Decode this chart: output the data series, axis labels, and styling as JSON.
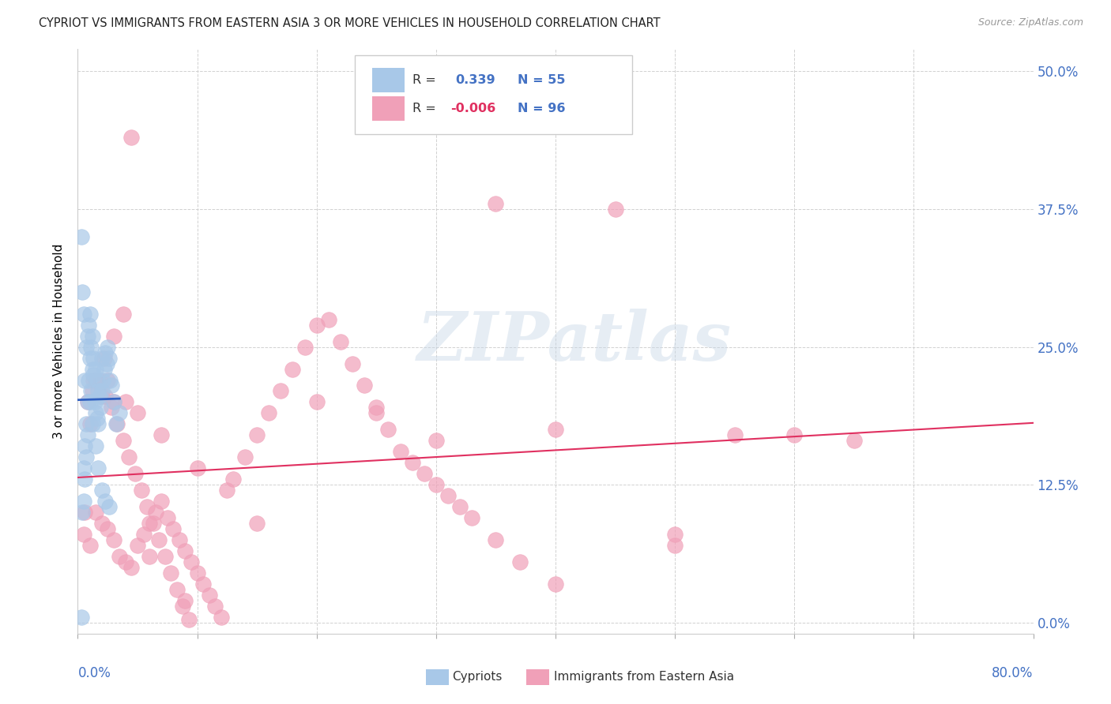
{
  "title": "CYPRIOT VS IMMIGRANTS FROM EASTERN ASIA 3 OR MORE VEHICLES IN HOUSEHOLD CORRELATION CHART",
  "source": "Source: ZipAtlas.com",
  "ylabel": "3 or more Vehicles in Household",
  "xlim": [
    0.0,
    80.0
  ],
  "ylim": [
    -1.0,
    52.0
  ],
  "blue_color": "#a8c8e8",
  "pink_color": "#f0a0b8",
  "trend_blue_color": "#3060c0",
  "trend_pink_color": "#e03060",
  "legend_r_blue": "0.339",
  "legend_n_blue": "55",
  "legend_r_pink": "-0.006",
  "legend_n_pink": "96",
  "blue_x": [
    0.3,
    0.4,
    0.5,
    0.5,
    0.6,
    0.6,
    0.7,
    0.7,
    0.8,
    0.8,
    0.9,
    0.9,
    1.0,
    1.0,
    1.1,
    1.1,
    1.2,
    1.2,
    1.3,
    1.3,
    1.4,
    1.5,
    1.5,
    1.6,
    1.6,
    1.7,
    1.7,
    1.8,
    1.9,
    2.0,
    2.0,
    2.1,
    2.2,
    2.3,
    2.4,
    2.5,
    2.6,
    2.7,
    2.8,
    3.0,
    3.2,
    3.5,
    0.4,
    0.5,
    0.6,
    0.7,
    0.8,
    1.0,
    1.2,
    1.5,
    1.7,
    2.0,
    2.3,
    2.6,
    0.3
  ],
  "blue_y": [
    35.0,
    30.0,
    14.0,
    28.0,
    16.0,
    22.0,
    18.0,
    25.0,
    20.0,
    26.0,
    22.0,
    27.0,
    24.0,
    28.0,
    21.0,
    25.0,
    23.0,
    26.0,
    22.5,
    24.0,
    20.0,
    19.0,
    23.0,
    18.5,
    22.0,
    18.0,
    21.0,
    20.5,
    19.5,
    21.0,
    24.0,
    22.0,
    23.0,
    24.5,
    23.5,
    25.0,
    24.0,
    22.0,
    21.5,
    20.0,
    18.0,
    19.0,
    10.0,
    11.0,
    13.0,
    15.0,
    17.0,
    20.0,
    18.0,
    16.0,
    14.0,
    12.0,
    11.0,
    10.5,
    0.5
  ],
  "pink_x": [
    0.5,
    1.0,
    1.5,
    2.0,
    2.5,
    3.0,
    3.5,
    4.0,
    4.5,
    5.0,
    5.5,
    6.0,
    6.5,
    7.0,
    7.5,
    8.0,
    8.5,
    9.0,
    9.5,
    10.0,
    10.5,
    11.0,
    11.5,
    12.0,
    12.5,
    13.0,
    14.0,
    15.0,
    16.0,
    17.0,
    18.0,
    19.0,
    20.0,
    21.0,
    22.0,
    23.0,
    24.0,
    25.0,
    26.0,
    27.0,
    28.0,
    29.0,
    30.0,
    31.0,
    32.0,
    33.0,
    35.0,
    37.0,
    40.0,
    45.0,
    50.0,
    60.0,
    65.0,
    1.2,
    1.8,
    2.3,
    2.8,
    3.3,
    3.8,
    4.3,
    4.8,
    5.3,
    5.8,
    6.3,
    6.8,
    7.3,
    7.8,
    8.3,
    8.8,
    9.3,
    0.8,
    1.5,
    2.2,
    3.0,
    3.8,
    4.5,
    1.0,
    2.0,
    3.0,
    5.0,
    7.0,
    10.0,
    15.0,
    20.0,
    25.0,
    30.0,
    35.0,
    40.0,
    50.0,
    55.0,
    0.6,
    1.3,
    2.5,
    4.0,
    6.0,
    9.0
  ],
  "pink_y": [
    8.0,
    7.0,
    10.0,
    9.0,
    8.5,
    7.5,
    6.0,
    5.5,
    5.0,
    7.0,
    8.0,
    9.0,
    10.0,
    11.0,
    9.5,
    8.5,
    7.5,
    6.5,
    5.5,
    4.5,
    3.5,
    2.5,
    1.5,
    0.5,
    12.0,
    13.0,
    15.0,
    17.0,
    19.0,
    21.0,
    23.0,
    25.0,
    27.0,
    27.5,
    25.5,
    23.5,
    21.5,
    19.5,
    17.5,
    15.5,
    14.5,
    13.5,
    12.5,
    11.5,
    10.5,
    9.5,
    7.5,
    5.5,
    3.5,
    37.5,
    8.0,
    17.0,
    16.5,
    21.0,
    22.0,
    20.5,
    19.5,
    18.0,
    16.5,
    15.0,
    13.5,
    12.0,
    10.5,
    9.0,
    7.5,
    6.0,
    4.5,
    3.0,
    1.5,
    0.3,
    20.0,
    22.0,
    24.0,
    26.0,
    28.0,
    44.0,
    18.0,
    20.5,
    20.0,
    19.0,
    17.0,
    14.0,
    9.0,
    20.0,
    19.0,
    16.5,
    38.0,
    17.5,
    7.0,
    17.0,
    10.0,
    22.0,
    22.0,
    20.0,
    6.0,
    2.0
  ],
  "ytick_vals": [
    0.0,
    12.5,
    25.0,
    37.5,
    50.0
  ],
  "ytick_labels": [
    "0.0%",
    "12.5%",
    "25.0%",
    "37.5%",
    "50.0%"
  ],
  "xtick_vals": [
    0,
    10,
    20,
    30,
    40,
    50,
    60,
    70,
    80
  ]
}
